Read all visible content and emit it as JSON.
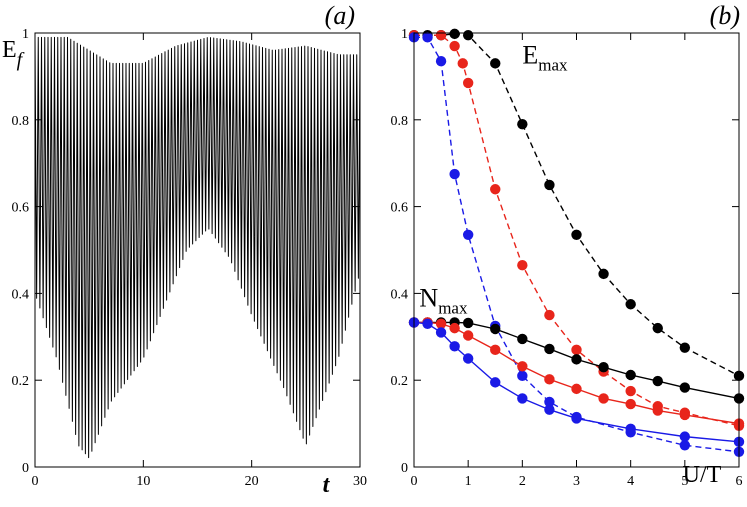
{
  "chart_data": [
    {
      "type": "line",
      "panel_label": "(a)",
      "xlabel": "t",
      "ylabel_main": "E",
      "ylabel_sub": "f",
      "xlim": [
        0,
        30
      ],
      "ylim": [
        0,
        1
      ],
      "xticks": [
        0,
        10,
        20,
        30
      ],
      "yticks": [
        0,
        0.2,
        0.4,
        0.6,
        0.8,
        1
      ],
      "ytick_labels": [
        "0",
        "0.2",
        "0.4",
        "0.6",
        "0.8",
        "1"
      ],
      "grid": false,
      "series": [
        {
          "color": "#000000",
          "oscillation": {
            "x_start": 0,
            "x_end": 30,
            "period": 0.3
          },
          "peak_envelope": {
            "x": [
              0,
              3,
              7,
              10,
              13,
              16,
              19,
              22,
              25,
              28,
              30
            ],
            "y": [
              0.99,
              0.99,
              0.93,
              0.93,
              0.97,
              0.99,
              0.98,
              0.96,
              0.97,
              0.95,
              0.95
            ]
          },
          "trough_envelope": {
            "x": [
              0,
              2,
              4,
              5,
              7,
              10,
              14,
              16,
              18,
              20,
              23,
              25,
              28,
              30
            ],
            "y": [
              0.4,
              0.25,
              0.05,
              0.02,
              0.15,
              0.25,
              0.5,
              0.55,
              0.48,
              0.35,
              0.18,
              0.05,
              0.25,
              0.45
            ]
          }
        }
      ]
    },
    {
      "type": "line",
      "panel_label": "(b)",
      "xlabel": "U/T",
      "xlim": [
        0,
        6
      ],
      "ylim": [
        0,
        1
      ],
      "xticks": [
        0,
        1,
        2,
        3,
        4,
        5,
        6
      ],
      "yticks": [
        0,
        0.2,
        0.4,
        0.6,
        0.8,
        1
      ],
      "ytick_labels": [
        "0",
        "0.2",
        "0.4",
        "0.6",
        "0.8",
        "1"
      ],
      "grid": false,
      "annotations": [
        {
          "main": "E",
          "sub": "max",
          "x": 2.0,
          "y": 0.93
        },
        {
          "main": "N",
          "sub": "max",
          "x": 0.1,
          "y": 0.37
        }
      ],
      "series": [
        {
          "color": "#000000",
          "style": "dashed",
          "x": [
            0,
            0.25,
            0.5,
            0.75,
            1,
            1.5,
            2,
            2.5,
            3,
            3.5,
            4,
            4.5,
            5,
            6
          ],
          "y": [
            0.995,
            0.995,
            0.995,
            0.998,
            0.995,
            0.93,
            0.79,
            0.65,
            0.535,
            0.445,
            0.375,
            0.32,
            0.275,
            0.21
          ]
        },
        {
          "color": "#e8251b",
          "style": "dashed",
          "x": [
            0,
            0.5,
            0.75,
            0.9,
            1,
            1.5,
            2,
            2.5,
            3,
            3.5,
            4,
            4.5,
            5,
            6
          ],
          "y": [
            0.995,
            0.995,
            0.97,
            0.93,
            0.885,
            0.64,
            0.465,
            0.35,
            0.27,
            0.22,
            0.175,
            0.14,
            0.125,
            0.095
          ]
        },
        {
          "color": "#1a1ae6",
          "style": "dashed",
          "x": [
            0,
            0.25,
            0.5,
            0.75,
            1,
            1.5,
            2,
            2.5,
            3,
            4,
            5,
            6
          ],
          "y": [
            0.99,
            0.99,
            0.935,
            0.675,
            0.535,
            0.325,
            0.21,
            0.15,
            0.115,
            0.08,
            0.05,
            0.035
          ]
        },
        {
          "color": "#000000",
          "style": "solid",
          "x": [
            0,
            0.25,
            0.5,
            0.75,
            1,
            1.5,
            2,
            2.5,
            3,
            3.5,
            4,
            4.5,
            5,
            6
          ],
          "y": [
            0.333,
            0.333,
            0.333,
            0.333,
            0.332,
            0.318,
            0.295,
            0.272,
            0.248,
            0.23,
            0.212,
            0.198,
            0.183,
            0.158
          ]
        },
        {
          "color": "#e8251b",
          "style": "solid",
          "x": [
            0,
            0.25,
            0.5,
            0.75,
            1,
            1.5,
            2,
            2.5,
            3,
            3.5,
            4,
            4.5,
            5,
            6
          ],
          "y": [
            0.333,
            0.333,
            0.33,
            0.32,
            0.303,
            0.27,
            0.232,
            0.202,
            0.18,
            0.158,
            0.145,
            0.13,
            0.12,
            0.1
          ]
        },
        {
          "color": "#1a1ae6",
          "style": "solid",
          "x": [
            0,
            0.25,
            0.5,
            0.75,
            1,
            1.5,
            2,
            2.5,
            3,
            4,
            5,
            6
          ],
          "y": [
            0.333,
            0.33,
            0.31,
            0.278,
            0.25,
            0.195,
            0.158,
            0.132,
            0.112,
            0.088,
            0.07,
            0.058
          ]
        }
      ]
    }
  ]
}
